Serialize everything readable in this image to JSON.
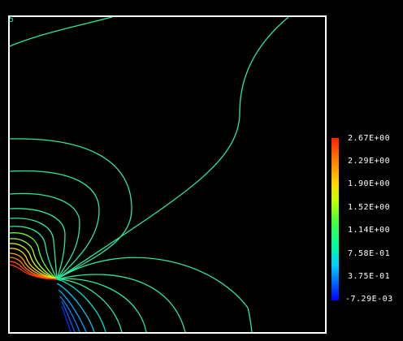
{
  "plot": {
    "corner_label": "5",
    "contour_color": "#2fe89a",
    "frame_color": "#ffffff"
  },
  "colorbar": {
    "labels": [
      "2.67E+00",
      "2.29E+00",
      "1.90E+00",
      "1.52E+00",
      "1.14E+00",
      "7.58E-01",
      "3.75E-01",
      "-7.29E-03"
    ]
  }
}
